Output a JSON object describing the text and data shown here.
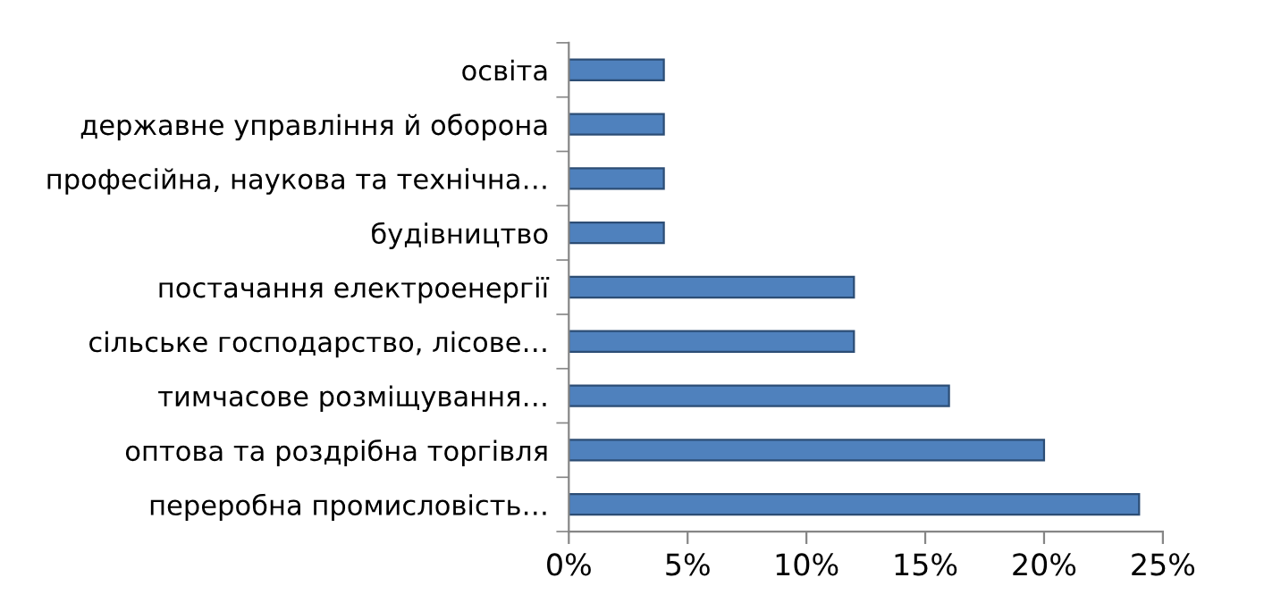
{
  "chart_data": {
    "type": "bar",
    "orientation": "horizontal",
    "categories": [
      "освіта",
      "державне управління й оборона",
      "професійна, наукова та технічна…",
      "будівництво",
      "постачання електроенергії",
      "сільське господарство, лісове…",
      "тимчасове розміщування…",
      "оптова та роздрібна торгівля",
      "переробна промисловість…"
    ],
    "values": [
      4,
      4,
      4,
      4,
      12,
      12,
      16,
      20,
      24
    ],
    "color": "#4f81bd",
    "xlim": [
      0,
      25
    ],
    "xticks": [
      {
        "value": 0,
        "label": "0%"
      },
      {
        "value": 5,
        "label": "5%"
      },
      {
        "value": 10,
        "label": "10%"
      },
      {
        "value": 15,
        "label": "15%"
      },
      {
        "value": 20,
        "label": "20%"
      },
      {
        "value": 25,
        "label": "25%"
      }
    ],
    "grid": false,
    "legend": false
  }
}
